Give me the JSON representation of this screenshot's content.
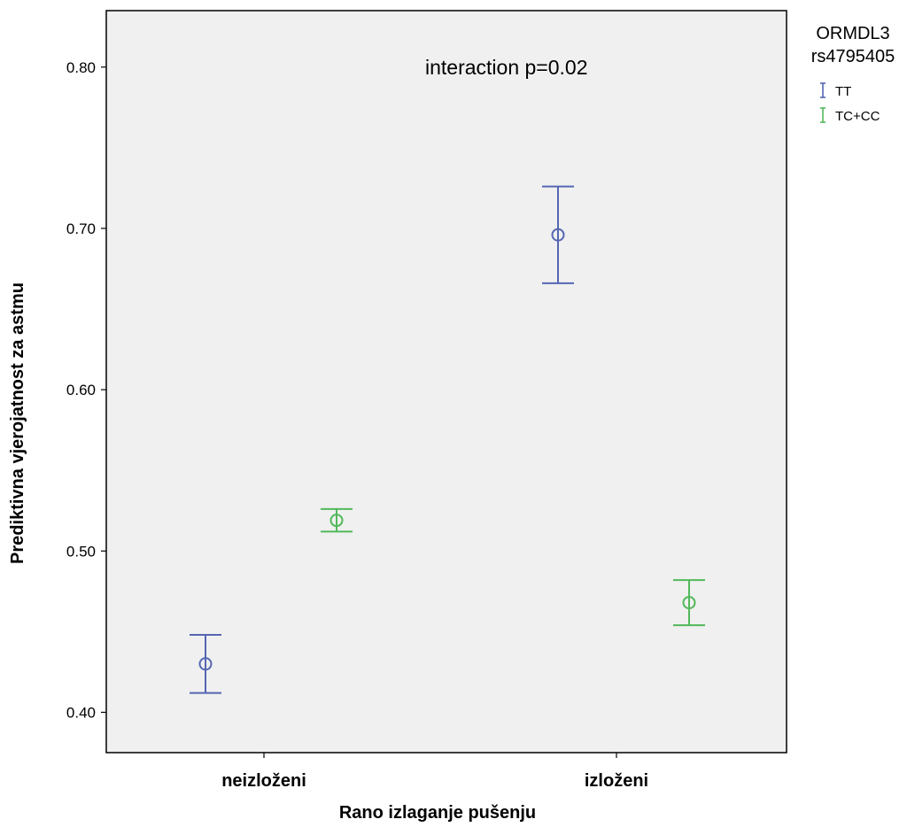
{
  "chart_data": {
    "type": "scatter",
    "error_bars": true,
    "xlabel": "Rano izlaganje pušenju",
    "ylabel": "Prediktivna vjerojatnost za astmu",
    "categories": [
      "neizloženi",
      "izloženi"
    ],
    "yticks": [
      "0.40",
      "0.50",
      "0.60",
      "0.70",
      "0.80"
    ],
    "ylim": [
      0.375,
      0.835
    ],
    "annotation": "interaction p=0.02",
    "grid": false,
    "legend": {
      "title_line1": "ORMDL3",
      "title_line2": "rs4795405",
      "placement": "top-right outside"
    },
    "series": [
      {
        "name": "TT",
        "color": "#5566b3",
        "points": [
          {
            "category": "neizloženi",
            "y": 0.43,
            "lower": 0.412,
            "upper": 0.448
          },
          {
            "category": "izloženi",
            "y": 0.696,
            "lower": 0.666,
            "upper": 0.726
          }
        ]
      },
      {
        "name": "TC+CC",
        "color": "#52b85a",
        "points": [
          {
            "category": "neizloženi",
            "y": 0.519,
            "lower": 0.512,
            "upper": 0.526
          },
          {
            "category": "izloženi",
            "y": 0.468,
            "lower": 0.454,
            "upper": 0.482
          }
        ]
      }
    ]
  }
}
